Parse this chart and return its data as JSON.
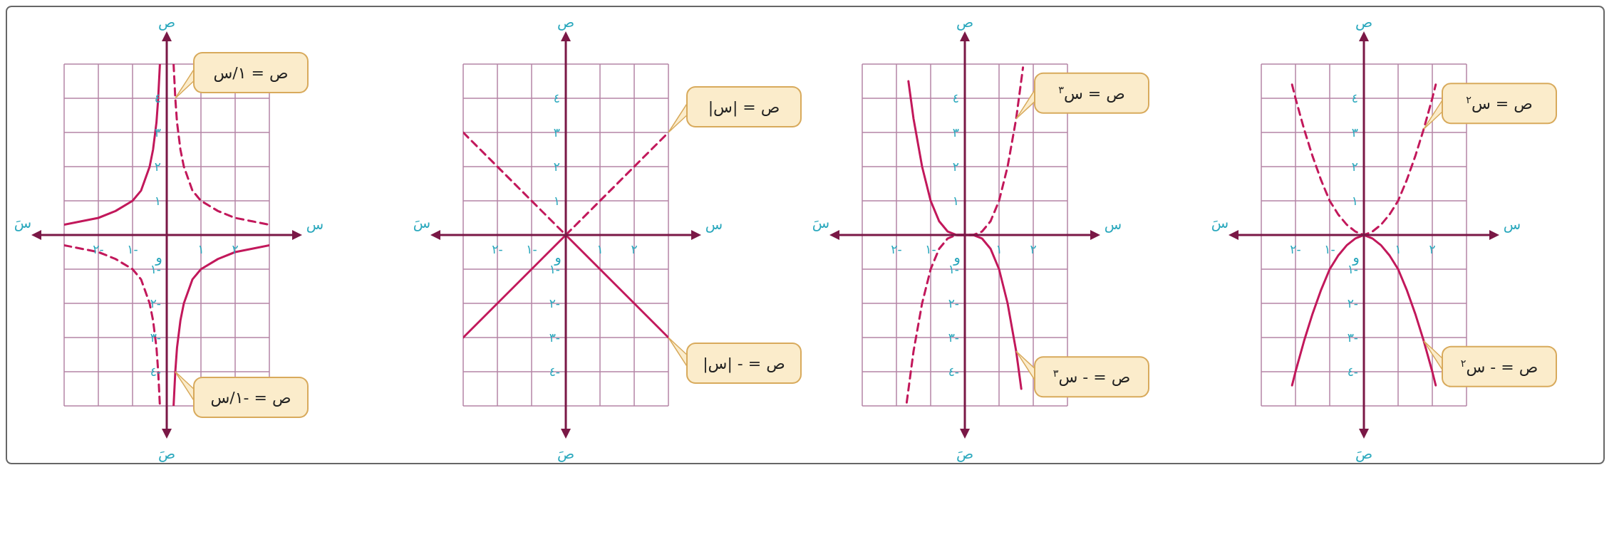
{
  "chart_data": [
    {
      "type": "line",
      "xlabel": "س",
      "ylabel": "ص",
      "xlim": [
        -3,
        3
      ],
      "ylim": [
        -5,
        5
      ],
      "grid": true,
      "xticks": [
        {
          "value": -3,
          "label": null
        },
        {
          "value": -2,
          "label": "٢-"
        },
        {
          "value": -1,
          "label": "١-"
        },
        {
          "value": 0,
          "label": null
        },
        {
          "value": 1,
          "label": "١"
        },
        {
          "value": 2,
          "label": "٢"
        },
        {
          "value": 3,
          "label": null
        }
      ],
      "yticks": [
        {
          "value": -5,
          "label": null
        },
        {
          "value": -4,
          "label": "٤-"
        },
        {
          "value": -3,
          "label": "٣-"
        },
        {
          "value": -2,
          "label": "٢-"
        },
        {
          "value": -1,
          "label": "١-"
        },
        {
          "value": 0,
          "label": null
        },
        {
          "value": 1,
          "label": "١"
        },
        {
          "value": 2,
          "label": "٢"
        },
        {
          "value": 3,
          "label": "٣"
        },
        {
          "value": 4,
          "label": "٤"
        },
        {
          "value": 5,
          "label": null
        }
      ],
      "annotations": [
        "سَ",
        "صَ",
        "و"
      ],
      "series": [
        {
          "name": "ص = ١/س",
          "color": "#c2185b",
          "line_style": "dashed",
          "x": [
            -3,
            -2.5,
            -2,
            -1.5,
            -1,
            -0.75,
            -0.5,
            -0.4,
            -0.3,
            -0.25,
            -0.2,
            0,
            0.2,
            0.25,
            0.3,
            0.4,
            0.5,
            0.75,
            1,
            1.5,
            2,
            2.5,
            3
          ],
          "values": [
            -0.3,
            -0.4,
            -0.5,
            -0.7,
            -1,
            -1.3,
            -2,
            -2.5,
            -3.3,
            -4,
            -5,
            null,
            5,
            4,
            3.3,
            2.5,
            2,
            1.3,
            1,
            0.7,
            0.5,
            0.4,
            0.3
          ]
        },
        {
          "name": "ص = -١/س",
          "color": "#c2185b",
          "line_style": "solid",
          "x": [
            -3,
            -2.5,
            -2,
            -1.5,
            -1,
            -0.75,
            -0.5,
            -0.4,
            -0.3,
            -0.25,
            -0.2,
            0,
            0.2,
            0.25,
            0.3,
            0.4,
            0.5,
            0.75,
            1,
            1.5,
            2,
            2.5,
            3
          ],
          "values": [
            0.3,
            0.4,
            0.5,
            0.7,
            1,
            1.3,
            2,
            2.5,
            3.3,
            4,
            5,
            null,
            -5,
            -4,
            -3.3,
            -2.5,
            -2,
            -1.3,
            -1,
            -0.7,
            -0.5,
            -0.4,
            -0.3
          ]
        }
      ]
    },
    {
      "type": "line",
      "xlabel": "س",
      "ylabel": "ص",
      "xlim": [
        -3,
        3
      ],
      "ylim": [
        -5,
        5
      ],
      "grid": true,
      "xticks": [
        {
          "value": -3,
          "label": null
        },
        {
          "value": -2,
          "label": "٢-"
        },
        {
          "value": -1,
          "label": "١-"
        },
        {
          "value": 0,
          "label": null
        },
        {
          "value": 1,
          "label": "١"
        },
        {
          "value": 2,
          "label": "٢"
        },
        {
          "value": 3,
          "label": null
        }
      ],
      "yticks": [
        {
          "value": -5,
          "label": null
        },
        {
          "value": -4,
          "label": "٤-"
        },
        {
          "value": -3,
          "label": "٣-"
        },
        {
          "value": -2,
          "label": "٢-"
        },
        {
          "value": -1,
          "label": "١-"
        },
        {
          "value": 0,
          "label": null
        },
        {
          "value": 1,
          "label": "١"
        },
        {
          "value": 2,
          "label": "٢"
        },
        {
          "value": 3,
          "label": "٣"
        },
        {
          "value": 4,
          "label": "٤"
        },
        {
          "value": 5,
          "label": null
        }
      ],
      "annotations": [
        "سَ",
        "صَ",
        "و"
      ],
      "series": [
        {
          "name": "ص = |س|",
          "color": "#c2185b",
          "line_style": "dashed",
          "x": [
            -3,
            0,
            3
          ],
          "values": [
            3,
            0,
            3
          ]
        },
        {
          "name": "ص = - |س|",
          "color": "#c2185b",
          "line_style": "solid",
          "x": [
            -3,
            0,
            3
          ],
          "values": [
            -3,
            0,
            -3
          ]
        }
      ]
    },
    {
      "type": "line",
      "xlabel": "س",
      "ylabel": "ص",
      "xlim": [
        -3,
        3
      ],
      "ylim": [
        -5,
        5
      ],
      "grid": true,
      "xticks": [
        {
          "value": -3,
          "label": null
        },
        {
          "value": -2,
          "label": "٢-"
        },
        {
          "value": -1,
          "label": "١-"
        },
        {
          "value": 0,
          "label": null
        },
        {
          "value": 1,
          "label": "١"
        },
        {
          "value": 2,
          "label": "٢"
        },
        {
          "value": 3,
          "label": null
        }
      ],
      "yticks": [
        {
          "value": -5,
          "label": null
        },
        {
          "value": -4,
          "label": "٤-"
        },
        {
          "value": -3,
          "label": "٣-"
        },
        {
          "value": -2,
          "label": "٢-"
        },
        {
          "value": -1,
          "label": "١-"
        },
        {
          "value": 0,
          "label": null
        },
        {
          "value": 1,
          "label": "١"
        },
        {
          "value": 2,
          "label": "٢"
        },
        {
          "value": 3,
          "label": "٣"
        },
        {
          "value": 4,
          "label": "٤"
        },
        {
          "value": 5,
          "label": null
        }
      ],
      "annotations": [
        "سَ",
        "صَ",
        "و"
      ],
      "series": [
        {
          "name": "ص = س$^{٣}$",
          "color": "#c2185b",
          "line_style": "dashed",
          "x": [
            -1.7,
            -1.5,
            -1.25,
            -1,
            -0.75,
            -0.5,
            -0.25,
            0,
            0.25,
            0.5,
            0.75,
            1,
            1.25,
            1.5,
            1.7
          ],
          "values": [
            -4.9,
            -3.4,
            -2,
            -1,
            -0.4,
            -0.1,
            0,
            0,
            0,
            0.1,
            0.4,
            1,
            2,
            3.4,
            4.9
          ]
        },
        {
          "name": "ص = - س$^{٣}$",
          "color": "#c2185b",
          "line_style": "solid",
          "x": [
            -1.65,
            -1.5,
            -1.25,
            -1,
            -0.75,
            -0.5,
            -0.25,
            0,
            0.25,
            0.5,
            0.75,
            1,
            1.25,
            1.5,
            1.65
          ],
          "values": [
            4.5,
            3.4,
            2,
            1,
            0.4,
            0.1,
            0,
            0,
            0,
            -0.1,
            -0.4,
            -1,
            -2,
            -3.4,
            -4.5
          ]
        }
      ]
    },
    {
      "type": "line",
      "xlabel": "س",
      "ylabel": "ص",
      "xlim": [
        -3,
        3
      ],
      "ylim": [
        -5,
        5
      ],
      "grid": true,
      "xticks": [
        {
          "value": -3,
          "label": null
        },
        {
          "value": -2,
          "label": "٢-"
        },
        {
          "value": -1,
          "label": "١-"
        },
        {
          "value": 0,
          "label": null
        },
        {
          "value": 1,
          "label": "١"
        },
        {
          "value": 2,
          "label": "٢"
        },
        {
          "value": 3,
          "label": null
        }
      ],
      "yticks": [
        {
          "value": -5,
          "label": null
        },
        {
          "value": -4,
          "label": "٤-"
        },
        {
          "value": -3,
          "label": "٣-"
        },
        {
          "value": -2,
          "label": "٢-"
        },
        {
          "value": -1,
          "label": "١-"
        },
        {
          "value": 0,
          "label": null
        },
        {
          "value": 1,
          "label": "١"
        },
        {
          "value": 2,
          "label": "٢"
        },
        {
          "value": 3,
          "label": "٣"
        },
        {
          "value": 4,
          "label": "٤"
        },
        {
          "value": 5,
          "label": null
        }
      ],
      "annotations": [
        "سَ",
        "صَ",
        "و"
      ],
      "series": [
        {
          "name": "ص = س$^{٢}$",
          "color": "#c2185b",
          "line_style": "dashed",
          "x": [
            -2.1,
            -2,
            -1.75,
            -1.5,
            -1.25,
            -1,
            -0.75,
            -0.5,
            -0.25,
            0,
            0.25,
            0.5,
            0.75,
            1,
            1.25,
            1.5,
            1.75,
            2,
            2.1
          ],
          "values": [
            4.4,
            4,
            3.1,
            2.3,
            1.6,
            1,
            0.6,
            0.3,
            0.1,
            0,
            0.1,
            0.3,
            0.6,
            1,
            1.6,
            2.3,
            3.1,
            4,
            4.4
          ]
        },
        {
          "name": "ص = - س$^{٢}$",
          "color": "#c2185b",
          "line_style": "solid",
          "x": [
            -2.1,
            -2,
            -1.75,
            -1.5,
            -1.25,
            -1,
            -0.75,
            -0.5,
            -0.25,
            0,
            0.25,
            0.5,
            0.75,
            1,
            1.25,
            1.5,
            1.75,
            2,
            2.1
          ],
          "values": [
            -4.4,
            -4,
            -3.1,
            -2.3,
            -1.6,
            -1,
            -0.6,
            -0.3,
            -0.1,
            0,
            -0.1,
            -0.3,
            -0.6,
            -1,
            -1.6,
            -2.3,
            -3.1,
            -4,
            -4.4
          ]
        }
      ]
    }
  ]
}
